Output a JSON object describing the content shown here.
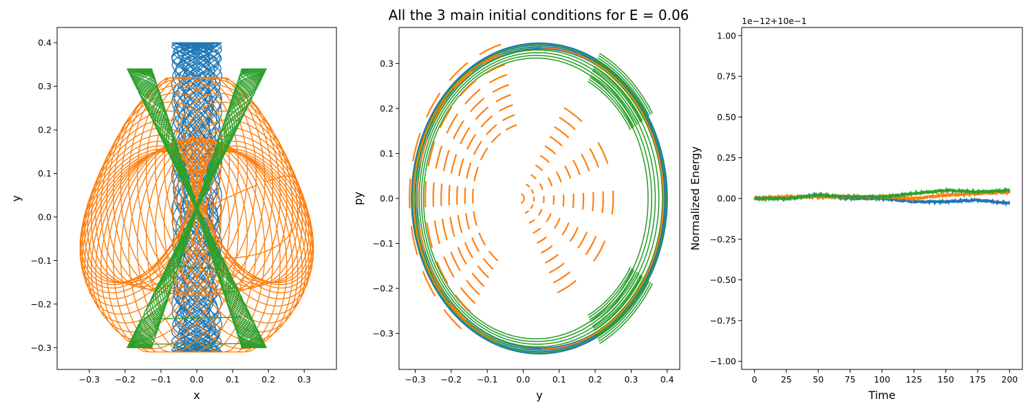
{
  "figure": {
    "title": "All the 3 main initial conditions for E = 0.06"
  },
  "colors": {
    "series1": "#1f77b4",
    "series2": "#ff7f0e",
    "series3": "#2ca02c"
  },
  "chart_data": [
    {
      "type": "line",
      "xlabel": "x",
      "ylabel": "y",
      "xlim": [
        -0.39,
        0.39
      ],
      "ylim": [
        -0.35,
        0.435
      ],
      "xticks": [
        -0.3,
        -0.2,
        -0.1,
        0.0,
        0.1,
        0.2,
        0.3
      ],
      "xtick_labels": [
        "−0.3",
        "−0.2",
        "−0.1",
        "0.0",
        "0.1",
        "0.2",
        "0.3"
      ],
      "yticks": [
        -0.3,
        -0.2,
        -0.1,
        0.0,
        0.1,
        0.2,
        0.3,
        0.4
      ],
      "ytick_labels": [
        "−0.3",
        "−0.2",
        "−0.1",
        "0.0",
        "0.1",
        "0.2",
        "0.3",
        "0.4"
      ],
      "series": [
        {
          "color": "#1f77b4",
          "x_amplitude": 0.07,
          "y_range": [
            -0.31,
            0.4
          ]
        },
        {
          "color": "#ff7f0e",
          "x_amplitude": 0.36,
          "y_range": [
            -0.31,
            0.32
          ]
        },
        {
          "color": "#2ca02c",
          "x_amplitude": 0.24,
          "y_range": [
            -0.3,
            0.34
          ]
        }
      ]
    },
    {
      "type": "scatter",
      "xlabel": "y",
      "ylabel": "py",
      "xlim": [
        -0.345,
        0.435
      ],
      "ylim": [
        -0.38,
        0.38
      ],
      "xticks": [
        -0.3,
        -0.2,
        -0.1,
        0.0,
        0.1,
        0.2,
        0.3,
        0.4
      ],
      "xtick_labels": [
        "−0.3",
        "−0.2",
        "−0.1",
        "0.0",
        "0.1",
        "0.2",
        "0.3",
        "0.4"
      ],
      "yticks": [
        -0.3,
        -0.2,
        -0.1,
        0.0,
        0.1,
        0.2,
        0.3
      ],
      "ytick_labels": [
        "−0.3",
        "−0.2",
        "−0.1",
        "0.0",
        "0.1",
        "0.2",
        "0.3"
      ],
      "series": [
        {
          "color": "#1f77b4",
          "y_range": [
            -0.31,
            0.4
          ],
          "py_range": [
            -0.345,
            0.345
          ]
        },
        {
          "color": "#ff7f0e",
          "y_range": [
            -0.31,
            0.39
          ],
          "py_range": [
            -0.34,
            0.34
          ]
        },
        {
          "color": "#2ca02c",
          "y_range": [
            -0.31,
            0.4
          ],
          "py_range": [
            -0.345,
            0.345
          ]
        }
      ]
    },
    {
      "type": "line",
      "xlabel": "Time",
      "ylabel": "Normalized Energy",
      "offset_text": "1e−12+10e−1",
      "xlim": [
        -10,
        210
      ],
      "ylim": [
        -1.05,
        1.05
      ],
      "xticks": [
        0,
        25,
        50,
        75,
        100,
        125,
        150,
        175,
        200
      ],
      "xtick_labels": [
        "0",
        "25",
        "50",
        "75",
        "100",
        "125",
        "150",
        "175",
        "200"
      ],
      "yticks": [
        -1.0,
        -0.75,
        -0.5,
        -0.25,
        0.0,
        0.25,
        0.5,
        0.75,
        1.0
      ],
      "ytick_labels": [
        "−1.00",
        "−0.75",
        "−0.50",
        "−0.25",
        "0.00",
        "0.25",
        "0.50",
        "0.75",
        "1.00"
      ],
      "series": [
        {
          "color": "#1f77b4",
          "t": [
            0,
            25,
            50,
            75,
            100,
            125,
            150,
            175,
            200
          ],
          "values": [
            0.0,
            0.0,
            0.02,
            0.0,
            0.0,
            -0.02,
            -0.02,
            -0.01,
            -0.03
          ]
        },
        {
          "color": "#ff7f0e",
          "t": [
            0,
            25,
            50,
            75,
            100,
            125,
            150,
            175,
            200
          ],
          "values": [
            0.0,
            0.01,
            0.01,
            0.01,
            0.01,
            0.0,
            0.02,
            0.03,
            0.04
          ]
        },
        {
          "color": "#2ca02c",
          "t": [
            0,
            25,
            50,
            75,
            100,
            125,
            150,
            175,
            200
          ],
          "values": [
            0.0,
            0.0,
            0.02,
            0.01,
            0.01,
            0.03,
            0.05,
            0.04,
            0.05
          ]
        }
      ]
    }
  ]
}
